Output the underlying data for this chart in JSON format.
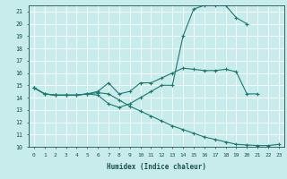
{
  "title": "",
  "xlabel": "Humidex (Indice chaleur)",
  "bg_color": "#c8ecec",
  "grid_color": "#ffffff",
  "line_color": "#1a7a6e",
  "xlim": [
    -0.5,
    23.5
  ],
  "ylim": [
    10,
    21.5
  ],
  "yticks": [
    10,
    11,
    12,
    13,
    14,
    15,
    16,
    17,
    18,
    19,
    20,
    21
  ],
  "xticks": [
    0,
    1,
    2,
    3,
    4,
    5,
    6,
    7,
    8,
    9,
    10,
    11,
    12,
    13,
    14,
    15,
    16,
    17,
    18,
    19,
    20,
    21,
    22,
    23
  ],
  "line1_x": [
    0,
    1,
    2,
    3,
    4,
    5,
    6,
    7,
    8,
    9,
    10,
    11,
    12,
    13,
    14,
    15,
    16,
    17,
    18,
    19,
    20,
    21
  ],
  "line1_y": [
    14.8,
    14.3,
    14.2,
    14.2,
    14.2,
    14.3,
    14.5,
    15.2,
    14.3,
    14.5,
    15.2,
    15.2,
    15.6,
    16.0,
    16.4,
    16.3,
    16.2,
    16.2,
    16.3,
    16.1,
    14.3,
    14.3
  ],
  "line2_x": [
    0,
    1,
    2,
    3,
    4,
    5,
    6,
    7,
    8,
    9,
    10,
    11,
    12,
    13,
    14,
    15,
    16,
    17,
    18,
    19,
    20
  ],
  "line2_y": [
    14.8,
    14.3,
    14.2,
    14.2,
    14.2,
    14.3,
    14.2,
    13.5,
    13.2,
    13.5,
    14.0,
    14.5,
    15.0,
    15.0,
    19.0,
    21.2,
    21.5,
    21.5,
    21.5,
    20.5,
    20.0
  ],
  "line3_x": [
    0,
    1,
    2,
    3,
    4,
    5,
    6,
    7,
    8,
    9,
    10,
    11,
    12,
    13,
    14,
    15,
    16,
    17,
    18,
    19,
    20,
    21,
    22,
    23
  ],
  "line3_y": [
    14.8,
    14.3,
    14.2,
    14.2,
    14.2,
    14.3,
    14.4,
    14.3,
    13.8,
    13.3,
    12.9,
    12.5,
    12.1,
    11.7,
    11.4,
    11.1,
    10.8,
    10.6,
    10.4,
    10.2,
    10.15,
    10.1,
    10.1,
    10.2
  ]
}
